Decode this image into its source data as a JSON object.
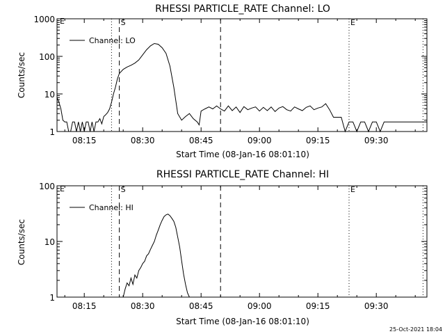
{
  "footer": {
    "timestamp": "25-Oct-2021 18:04"
  },
  "chart_data": [
    {
      "type": "line",
      "title": "RHESSI PARTICLE_RATE Channel: LO",
      "xlabel": "Start Time (08-Jan-16 08:01:10)",
      "ylabel": "Counts/sec",
      "yscale": "log",
      "ylim": [
        1,
        1000
      ],
      "y_ticks": [
        1,
        10,
        100,
        1000
      ],
      "y_tick_labels": [
        "1",
        "10",
        "100",
        "1000"
      ],
      "xlim_minutes": [
        8.0,
        103.0
      ],
      "x_ticks_minutes": [
        15,
        30,
        45,
        60,
        75,
        90
      ],
      "x_tick_labels": [
        "08:15",
        "08:30",
        "08:45",
        "09:00",
        "09:15",
        "09:30"
      ],
      "legend": "top-left",
      "series": [
        {
          "name": "Channel: LO",
          "color": "#000000",
          "x_minutes": [
            8.0,
            8.5,
            9.0,
            9.5,
            10.0,
            10.5,
            11.0,
            11.5,
            12.0,
            12.5,
            13.0,
            13.5,
            14.0,
            14.5,
            15.0,
            15.5,
            16.0,
            16.5,
            17.0,
            17.5,
            18.0,
            18.5,
            19.0,
            19.5,
            20.0,
            20.5,
            21.0,
            21.5,
            22.0,
            22.5,
            23.0,
            23.5,
            24.0,
            25.0,
            26.0,
            27.0,
            28.0,
            29.0,
            30.0,
            31.0,
            32.0,
            33.0,
            34.0,
            35.0,
            36.0,
            37.0,
            38.0,
            39.0,
            40.0,
            41.0,
            42.0,
            43.0,
            44.0,
            44.5,
            45.0,
            46.0,
            47.0,
            48.0,
            49.0,
            50.0,
            51.0,
            52.0,
            53.0,
            54.0,
            55.0,
            56.0,
            57.0,
            58.0,
            59.0,
            60.0,
            61.0,
            62.0,
            63.0,
            64.0,
            65.0,
            66.0,
            67.0,
            68.0,
            69.0,
            70.0,
            71.0,
            72.0,
            73.0,
            74.0,
            75.0,
            76.0,
            77.0,
            78.0,
            79.0,
            80.0,
            81.0,
            82.0,
            83.0,
            84.0,
            85.0,
            86.0,
            87.0,
            88.0,
            89.0,
            90.0,
            91.0,
            92.0,
            93.0,
            94.0,
            95.0,
            96.0,
            97.0,
            98.0,
            99.0,
            100.0,
            101.0,
            102.0,
            103.0
          ],
          "y": [
            8,
            6,
            4,
            2,
            1.8,
            1.8,
            1,
            1,
            1.8,
            1.8,
            1,
            1.8,
            1,
            1.8,
            1,
            1.8,
            1.8,
            1,
            1.8,
            1,
            1.8,
            1.8,
            2.2,
            1.6,
            2.5,
            2.8,
            3.2,
            4,
            6,
            10,
            15,
            25,
            35,
            45,
            52,
            58,
            66,
            80,
            110,
            150,
            190,
            220,
            210,
            170,
            120,
            55,
            15,
            3,
            2,
            2.5,
            3,
            2.2,
            1.8,
            1.5,
            3.5,
            4,
            4.5,
            4,
            4.8,
            4,
            3.5,
            4.8,
            3.6,
            4.5,
            3.2,
            4.6,
            3.8,
            4.2,
            4.5,
            3.5,
            4.4,
            3.6,
            4.5,
            3.4,
            4.2,
            4.6,
            3.8,
            3.5,
            4.5,
            4,
            3.6,
            4.4,
            4.8,
            3.8,
            4.2,
            4.5,
            5.5,
            3.8,
            2.4,
            2.4,
            2.4,
            1,
            1.8,
            1.8,
            1,
            1.8,
            1.8,
            1,
            1.8,
            1.8,
            1,
            1.8,
            1.8,
            1.8,
            1.8,
            1.8,
            1.8,
            1.8,
            1.8,
            1.8,
            1.8,
            1.8,
            1.8
          ]
        }
      ],
      "markers": [
        {
          "x_minutes": 22.0,
          "style": "dotted",
          "label": ""
        },
        {
          "x_minutes": 24.0,
          "style": "dashed",
          "label": "S"
        },
        {
          "x_minutes": 50.0,
          "style": "dashed",
          "label": ""
        },
        {
          "x_minutes": 83.0,
          "style": "dotted",
          "label": "E"
        },
        {
          "x_minutes": 102.0,
          "style": "dotted",
          "label": ""
        }
      ],
      "edge_label": "E"
    },
    {
      "type": "line",
      "title": "RHESSI PARTICLE_RATE Channel: HI",
      "xlabel": "Start Time (08-Jan-16 08:01:10)",
      "ylabel": "Counts/sec",
      "yscale": "log",
      "ylim": [
        1,
        100
      ],
      "y_ticks": [
        1,
        10,
        100
      ],
      "y_tick_labels": [
        "1",
        "10",
        "100"
      ],
      "xlim_minutes": [
        8.0,
        103.0
      ],
      "x_ticks_minutes": [
        15,
        30,
        45,
        60,
        75,
        90
      ],
      "x_tick_labels": [
        "08:15",
        "08:30",
        "08:45",
        "09:00",
        "09:15",
        "09:30"
      ],
      "legend": "top-left",
      "series": [
        {
          "name": "Channel: HI",
          "color": "#000000",
          "x_minutes": [
            25.0,
            25.5,
            26.0,
            26.5,
            27.0,
            27.5,
            28.0,
            28.5,
            29.0,
            29.5,
            30.0,
            30.5,
            31.0,
            31.5,
            32.0,
            32.5,
            33.0,
            33.5,
            34.0,
            34.5,
            35.0,
            35.5,
            36.0,
            36.5,
            37.0,
            37.5,
            38.0,
            38.5,
            39.0,
            39.5,
            40.0,
            40.5,
            41.0,
            41.5,
            42.0
          ],
          "y": [
            1,
            1.4,
            1.8,
            1.6,
            2.2,
            1.7,
            2.5,
            2.2,
            3.0,
            3.4,
            4.0,
            4.4,
            5.5,
            6.0,
            7.2,
            8.5,
            10,
            13,
            16,
            20,
            24,
            28,
            30,
            31,
            29,
            26,
            23,
            18,
            12,
            8,
            4.5,
            2.6,
            1.7,
            1.2,
            1
          ]
        }
      ],
      "markers": [
        {
          "x_minutes": 22.0,
          "style": "dotted",
          "label": ""
        },
        {
          "x_minutes": 24.0,
          "style": "dashed",
          "label": "S"
        },
        {
          "x_minutes": 50.0,
          "style": "dashed",
          "label": ""
        },
        {
          "x_minutes": 83.0,
          "style": "dotted",
          "label": "E"
        },
        {
          "x_minutes": 102.0,
          "style": "dotted",
          "label": ""
        }
      ],
      "edge_label": "E"
    }
  ]
}
